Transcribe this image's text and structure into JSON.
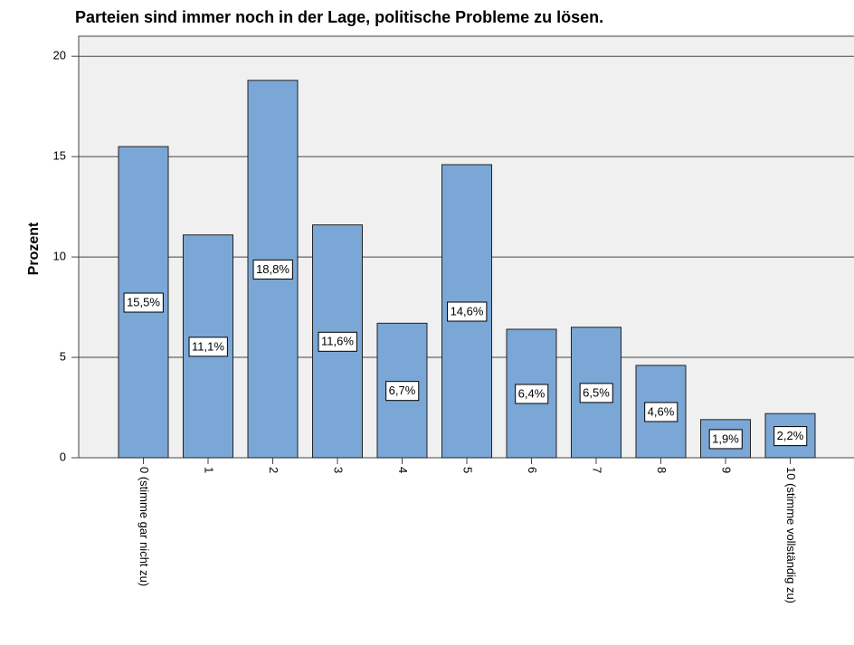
{
  "chart_data": {
    "type": "bar",
    "title": "Parteien sind immer noch in der Lage, politische Probleme zu lösen.",
    "ylabel": "Prozent",
    "categories": [
      "0 (stimme gar nicht zu)",
      "1",
      "2",
      "3",
      "4",
      "5",
      "6",
      "7",
      "8",
      "9",
      "10 (stimme vollständig zu)"
    ],
    "values": [
      15.5,
      11.1,
      18.8,
      11.6,
      6.7,
      14.6,
      6.4,
      6.5,
      4.6,
      1.9,
      2.2
    ],
    "value_labels": [
      "15,5%",
      "11,1%",
      "18,8%",
      "11,6%",
      "6,7%",
      "14,6%",
      "6,4%",
      "6,5%",
      "4,6%",
      "1,9%",
      "2,2%"
    ],
    "color": "#7aa7d6",
    "ylim": [
      0,
      21
    ],
    "yticks": [
      0,
      5,
      10,
      15,
      20
    ],
    "grid": true
  }
}
